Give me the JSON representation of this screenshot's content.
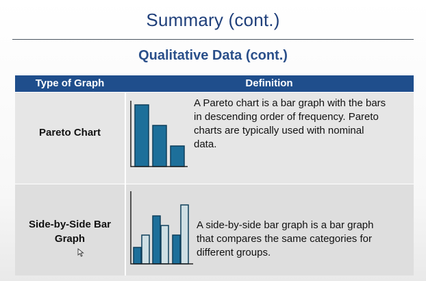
{
  "slide": {
    "title": "Summary (cont.)",
    "section_title": "Qualitative Data (cont.)"
  },
  "table": {
    "headers": [
      "Type of Graph",
      "Definition"
    ],
    "rows": [
      {
        "term": "Pareto Chart",
        "definition_lines": [
          "A Pareto chart is a bar graph with the bars",
          "in descending order of frequency. Pareto",
          "charts are typically used with nominal",
          "data."
        ]
      },
      {
        "term_lines": [
          "Side-by-Side Bar",
          "Graph"
        ],
        "definition_lines": [
          "A side-by-side bar graph is a bar graph",
          "that compares the same categories for",
          "different groups."
        ]
      }
    ]
  },
  "icons": {
    "pareto_chart": "pareto-bar-chart-icon",
    "side_by_side_chart": "side-by-side-bar-chart-icon",
    "cursor": "mouse-cursor-icon"
  },
  "colors": {
    "title": "#1f3f7a",
    "header_bg": "#1f4e8c",
    "bar_dark": "#1d6f9a",
    "bar_light": "#cfdfe4"
  }
}
